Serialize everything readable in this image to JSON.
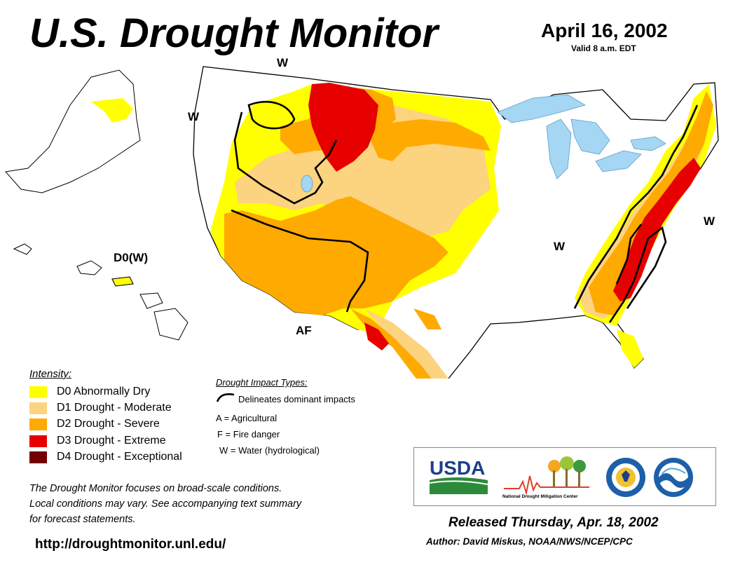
{
  "header": {
    "title": "U.S. Drought Monitor",
    "date": "April 16, 2002",
    "valid": "Valid 8 a.m. EDT"
  },
  "map_labels": {
    "w_north": "W",
    "w_west": "W",
    "w_east": "W",
    "w_midsouth": "W",
    "af": "AF",
    "hawaii": "D0(W)"
  },
  "colors": {
    "d0": "#ffff00",
    "d1": "#fcd37f",
    "d2": "#ffaa00",
    "d3": "#e60000",
    "d4": "#730000",
    "water": "#a5d6f4"
  },
  "legend": {
    "title": "Intensity:",
    "items": [
      {
        "code": "D0",
        "label": "D0 Abnormally Dry"
      },
      {
        "code": "D1",
        "label": "D1 Drought - Moderate"
      },
      {
        "code": "D2",
        "label": "D2 Drought - Severe"
      },
      {
        "code": "D3",
        "label": "D3 Drought - Extreme"
      },
      {
        "code": "D4",
        "label": "D4 Drought - Exceptional"
      }
    ]
  },
  "impact_types": {
    "title": "Drought Impact Types:",
    "delineates": "Delineates dominant impacts",
    "a": "A = Agricultural",
    "f": "F = Fire danger",
    "w": "W = Water (hydrological)"
  },
  "note": {
    "line1": "The Drought Monitor focuses on broad-scale conditions.",
    "line2": "Local conditions may vary. See accompanying text summary",
    "line3": "for forecast statements."
  },
  "footer": {
    "url": "http://droughtmonitor.unl.edu/",
    "released": "Released Thursday, Apr. 18, 2002",
    "author": "Author: David Miskus, NOAA/NWS/NCEP/CPC"
  },
  "logos": {
    "usda": "USDA",
    "ndmc": "National Drought Mitigation Center"
  }
}
